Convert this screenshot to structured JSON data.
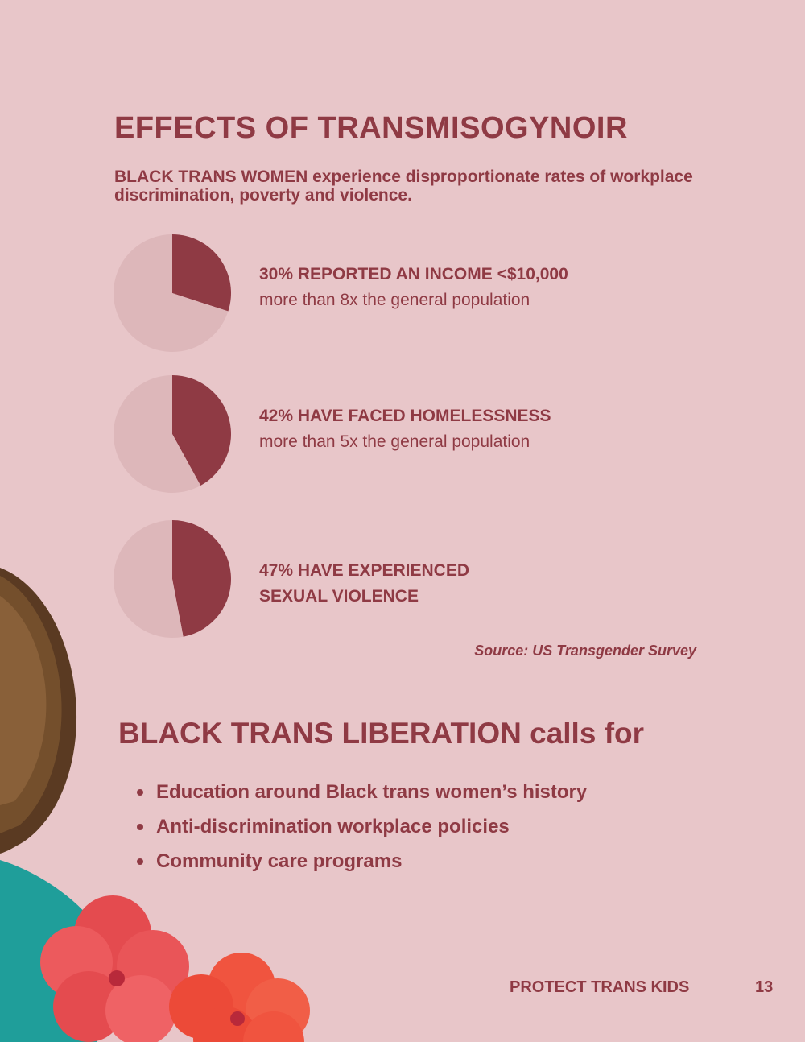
{
  "title": "EFFECTS OF TRANSMISOGYNOIR",
  "subtitle": "BLACK TRANS WOMEN experience disproportionate rates of workplace discrimination, poverty and violence.",
  "colors": {
    "background": "#e8c6c9",
    "accent": "#8f3a44",
    "pie_rest": "#ddb7ba"
  },
  "chart_data": [
    {
      "type": "pie",
      "slices": [
        {
          "value": 30,
          "color": "#8f3a44"
        },
        {
          "value": 70,
          "color": "#ddb7ba"
        }
      ],
      "headline": "30% REPORTED AN INCOME <$10,000",
      "detail": "more than 8x the general population"
    },
    {
      "type": "pie",
      "slices": [
        {
          "value": 42,
          "color": "#8f3a44"
        },
        {
          "value": 58,
          "color": "#ddb7ba"
        }
      ],
      "headline": "42% HAVE FACED HOMELESSNESS",
      "detail": "more than 5x the general population"
    },
    {
      "type": "pie",
      "slices": [
        {
          "value": 47,
          "color": "#8f3a44"
        },
        {
          "value": 53,
          "color": "#ddb7ba"
        }
      ],
      "headline": "47% HAVE EXPERIENCED\nSEXUAL VIOLENCE",
      "detail": ""
    }
  ],
  "source": "Source: US Transgender Survey",
  "call": {
    "title": "BLACK TRANS LIBERATION calls for",
    "items": [
      "Education around Black trans women’s history",
      "Anti-discrimination workplace policies",
      "Community care programs"
    ]
  },
  "footer": {
    "label": "PROTECT TRANS KIDS",
    "page": "13"
  }
}
